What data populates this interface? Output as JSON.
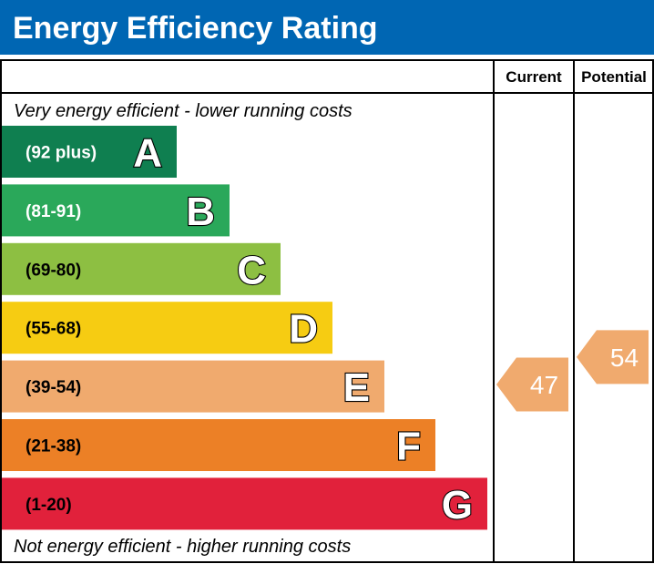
{
  "header": {
    "title": "Energy Efficiency Rating",
    "background": "#0066b3"
  },
  "columns": {
    "current_label": "Current",
    "potential_label": "Potential"
  },
  "captions": {
    "top": "Very energy efficient - lower running costs",
    "bottom": "Not energy efficient - higher running costs"
  },
  "chart_data": {
    "type": "bar",
    "title": "Energy Efficiency Rating",
    "bands": [
      {
        "letter": "A",
        "range": "(92 plus)",
        "min": 92,
        "max": 100,
        "color": "#0f7f50",
        "text_color": "#ffffff"
      },
      {
        "letter": "B",
        "range": "(81-91)",
        "min": 81,
        "max": 91,
        "color": "#2aa85a",
        "text_color": "#ffffff"
      },
      {
        "letter": "C",
        "range": "(69-80)",
        "min": 69,
        "max": 80,
        "color": "#8dbf42",
        "text_color": "#000000"
      },
      {
        "letter": "D",
        "range": "(55-68)",
        "min": 55,
        "max": 68,
        "color": "#f6cc12",
        "text_color": "#000000"
      },
      {
        "letter": "E",
        "range": "(39-54)",
        "min": 39,
        "max": 54,
        "color": "#f0aa6e",
        "text_color": "#000000"
      },
      {
        "letter": "F",
        "range": "(21-38)",
        "min": 21,
        "max": 38,
        "color": "#ec8026",
        "text_color": "#000000"
      },
      {
        "letter": "G",
        "range": "(1-20)",
        "min": 1,
        "max": 20,
        "color": "#e1213b",
        "text_color": "#000000"
      }
    ],
    "ratings": {
      "current": {
        "value": 47,
        "band": "E",
        "color": "#f0aa6e"
      },
      "potential": {
        "value": 54,
        "band": "E",
        "color": "#f0aa6e"
      }
    }
  }
}
